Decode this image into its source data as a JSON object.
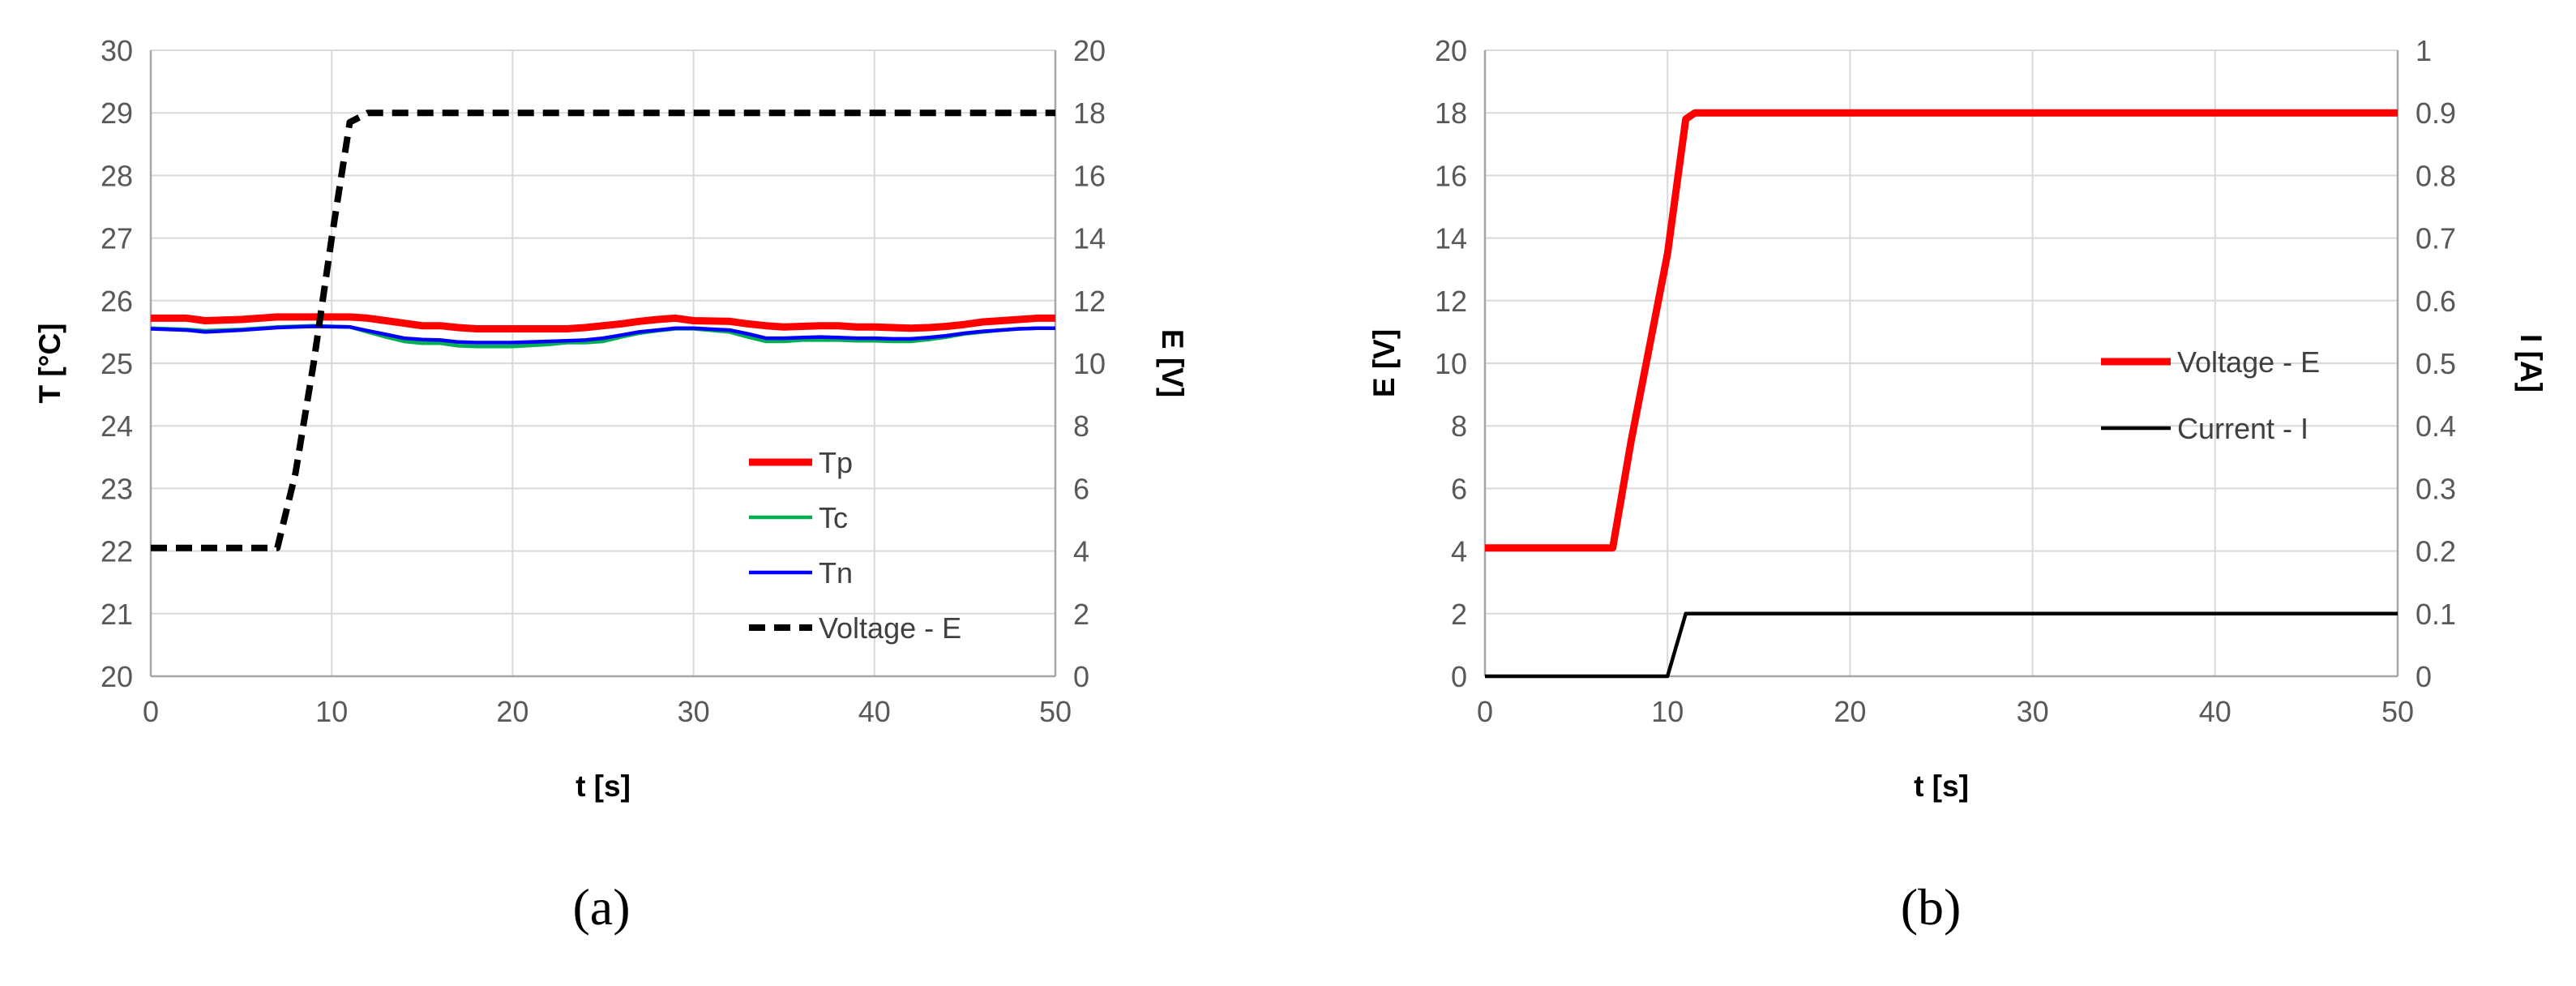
{
  "chart_data": [
    {
      "panel_label": "(a)",
      "type": "line",
      "xlabel": "t [s]",
      "ylabel_left": "T [°C]",
      "ylabel_right": "E [V]",
      "xlim": [
        0,
        50
      ],
      "ylim_left": [
        20,
        30
      ],
      "ylim_right": [
        0,
        20
      ],
      "xticks": [
        "0",
        "10",
        "20",
        "30",
        "40",
        "50"
      ],
      "yticks_left": [
        "20",
        "21",
        "22",
        "23",
        "24",
        "25",
        "26",
        "27",
        "28",
        "29",
        "30"
      ],
      "yticks_right": [
        "0",
        "2",
        "4",
        "6",
        "8",
        "10",
        "12",
        "14",
        "16",
        "18",
        "20"
      ],
      "grid": true,
      "legend_position": "lower-right inside",
      "series": [
        {
          "name": "Tp",
          "axis": "left",
          "color": "#ff0000",
          "style": "solid-thick",
          "x": [
            0,
            2,
            3,
            5,
            7,
            9,
            11,
            12,
            13,
            14,
            15,
            16,
            17,
            18,
            20,
            22,
            23,
            24,
            25,
            26,
            27,
            28,
            29,
            30,
            32,
            33,
            34,
            35,
            36,
            37,
            38,
            39,
            40,
            41,
            42,
            43,
            44,
            45,
            46,
            47,
            48,
            49,
            50
          ],
          "y": [
            25.72,
            25.72,
            25.68,
            25.7,
            25.74,
            25.74,
            25.74,
            25.72,
            25.68,
            25.64,
            25.6,
            25.6,
            25.57,
            25.55,
            25.55,
            25.55,
            25.55,
            25.57,
            25.6,
            25.63,
            25.67,
            25.7,
            25.72,
            25.68,
            25.67,
            25.63,
            25.6,
            25.58,
            25.59,
            25.6,
            25.6,
            25.58,
            25.58,
            25.57,
            25.56,
            25.57,
            25.59,
            25.62,
            25.66,
            25.68,
            25.7,
            25.72,
            25.72
          ]
        },
        {
          "name": "Tc",
          "axis": "left",
          "color": "#00b050",
          "style": "solid",
          "x": [
            0,
            2,
            3,
            5,
            7,
            9,
            11,
            12,
            13,
            14,
            15,
            16,
            17,
            18,
            20,
            22,
            23,
            24,
            25,
            26,
            27,
            28,
            29,
            30,
            32,
            33,
            34,
            35,
            36,
            37,
            38,
            39,
            40,
            41,
            42,
            43,
            44,
            45,
            46,
            47,
            48,
            49,
            50
          ],
          "y": [
            25.56,
            25.54,
            25.52,
            25.54,
            25.58,
            25.6,
            25.58,
            25.5,
            25.42,
            25.35,
            25.32,
            25.32,
            25.28,
            25.27,
            25.27,
            25.3,
            25.33,
            25.33,
            25.35,
            25.42,
            25.48,
            25.52,
            25.55,
            25.55,
            25.5,
            25.42,
            25.35,
            25.35,
            25.37,
            25.37,
            25.37,
            25.36,
            25.36,
            25.35,
            25.35,
            25.38,
            25.42,
            25.47,
            25.5,
            25.53,
            25.55,
            25.56,
            25.56
          ]
        },
        {
          "name": "Tn",
          "axis": "left",
          "color": "#0000ff",
          "style": "solid",
          "x": [
            0,
            2,
            3,
            5,
            7,
            9,
            11,
            12,
            13,
            14,
            15,
            16,
            17,
            18,
            20,
            22,
            23,
            24,
            25,
            26,
            27,
            28,
            29,
            30,
            32,
            33,
            34,
            35,
            36,
            37,
            38,
            39,
            40,
            41,
            42,
            43,
            44,
            45,
            46,
            47,
            48,
            49,
            50
          ],
          "y": [
            25.55,
            25.53,
            25.5,
            25.53,
            25.57,
            25.59,
            25.58,
            25.52,
            25.46,
            25.4,
            25.38,
            25.37,
            25.34,
            25.33,
            25.33,
            25.35,
            25.36,
            25.37,
            25.4,
            25.45,
            25.5,
            25.53,
            25.56,
            25.56,
            25.53,
            25.47,
            25.4,
            25.4,
            25.41,
            25.42,
            25.41,
            25.4,
            25.4,
            25.39,
            25.39,
            25.41,
            25.44,
            25.48,
            25.51,
            25.53,
            25.55,
            25.56,
            25.56
          ]
        },
        {
          "name": "Voltage - E",
          "axis": "right",
          "color": "#000000",
          "style": "dashed-thick",
          "x": [
            0,
            7,
            8,
            9,
            10,
            11,
            12,
            50
          ],
          "y": [
            4.1,
            4.1,
            6.5,
            10.0,
            14.0,
            17.7,
            18.0,
            18.0
          ]
        }
      ]
    },
    {
      "panel_label": "(b)",
      "type": "line",
      "xlabel": "t [s]",
      "ylabel_left": "E [V]",
      "ylabel_right": "I [A]",
      "xlim": [
        0,
        50
      ],
      "ylim_left": [
        0,
        20
      ],
      "ylim_right": [
        0,
        1
      ],
      "xticks": [
        "0",
        "10",
        "20",
        "30",
        "40",
        "50"
      ],
      "yticks_left": [
        "0",
        "2",
        "4",
        "6",
        "8",
        "10",
        "12",
        "14",
        "16",
        "18",
        "20"
      ],
      "yticks_right": [
        "0",
        "0.1",
        "0.2",
        "0.3",
        "0.4",
        "0.5",
        "0.6",
        "0.7",
        "0.8",
        "0.9",
        "1"
      ],
      "grid": true,
      "legend_position": "right inside",
      "series": [
        {
          "name": "Voltage - E",
          "axis": "left",
          "color": "#ff0000",
          "style": "solid-thick",
          "x": [
            0,
            7,
            8,
            9,
            10,
            11,
            11.5,
            12,
            50
          ],
          "y": [
            4.1,
            4.1,
            7.5,
            10.5,
            13.5,
            17.8,
            18.0,
            18.0,
            18.0
          ]
        },
        {
          "name": "Current - I",
          "axis": "right",
          "color": "#000000",
          "style": "solid",
          "x": [
            0,
            10,
            11,
            50
          ],
          "y": [
            0,
            0,
            0.1,
            0.1
          ]
        }
      ]
    }
  ]
}
